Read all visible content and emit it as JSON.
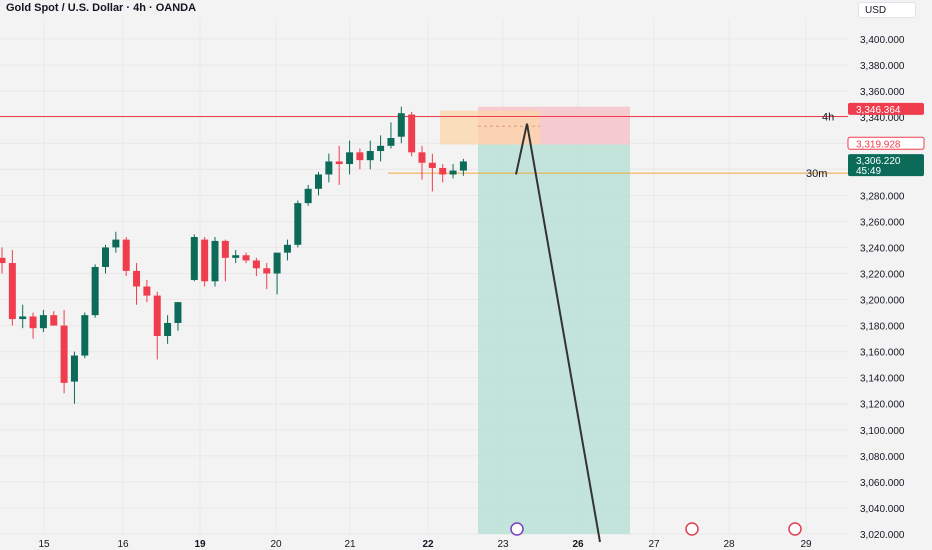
{
  "header": {
    "title": "Gold Spot / U.S. Dollar · 4h · OANDA",
    "currency": "USD"
  },
  "colors": {
    "up": "#0b6b58",
    "down": "#ef3d4e",
    "red_line": "#ef3d4e",
    "orange_line": "#f3a93a",
    "profit_zone": "#b9e0d6",
    "stop_zone": "#f6c6cc",
    "entry_zone": "#fcd6a8",
    "arrow": "#333333"
  },
  "chart_data": {
    "type": "candlestick",
    "y_range": [
      3020,
      3420
    ],
    "y_ticks": [
      "3,400.000",
      "3,380.000",
      "3,360.000",
      "3,340.000",
      "3,320.000",
      "3,300.000",
      "3,280.000",
      "3,260.000",
      "3,240.000",
      "3,220.000",
      "3,200.000",
      "3,180.000",
      "3,160.000",
      "3,140.000",
      "3,120.000",
      "3,100.000",
      "3,080.000",
      "3,060.000",
      "3,040.000",
      "3,020.000"
    ],
    "x_ticks": [
      "15",
      "16",
      "19",
      "20",
      "21",
      "22",
      "23",
      "26",
      "27",
      "28",
      "29"
    ],
    "candles": [
      {
        "o": 3232,
        "h": 3240,
        "l": 3220,
        "c": 3228
      },
      {
        "o": 3228,
        "h": 3238,
        "l": 3180,
        "c": 3185
      },
      {
        "o": 3185,
        "h": 3196,
        "l": 3178,
        "c": 3187
      },
      {
        "o": 3187,
        "h": 3190,
        "l": 3170,
        "c": 3178
      },
      {
        "o": 3178,
        "h": 3192,
        "l": 3175,
        "c": 3188
      },
      {
        "o": 3188,
        "h": 3191,
        "l": 3180,
        "c": 3180
      },
      {
        "o": 3180,
        "h": 3192,
        "l": 3128,
        "c": 3136
      },
      {
        "o": 3137,
        "h": 3160,
        "l": 3120,
        "c": 3157
      },
      {
        "o": 3157,
        "h": 3190,
        "l": 3155,
        "c": 3188
      },
      {
        "o": 3188,
        "h": 3227,
        "l": 3186,
        "c": 3225
      },
      {
        "o": 3225,
        "h": 3242,
        "l": 3220,
        "c": 3240
      },
      {
        "o": 3240,
        "h": 3252,
        "l": 3236,
        "c": 3246
      },
      {
        "o": 3246,
        "h": 3248,
        "l": 3218,
        "c": 3222
      },
      {
        "o": 3222,
        "h": 3228,
        "l": 3196,
        "c": 3210
      },
      {
        "o": 3210,
        "h": 3215,
        "l": 3198,
        "c": 3203
      },
      {
        "o": 3203,
        "h": 3206,
        "l": 3154,
        "c": 3172
      },
      {
        "o": 3172,
        "h": 3188,
        "l": 3166,
        "c": 3182
      },
      {
        "o": 3182,
        "h": 3198,
        "l": 3176,
        "c": 3198
      },
      {
        "o": 3215,
        "h": 3250,
        "l": 3214,
        "c": 3248
      },
      {
        "o": 3246,
        "h": 3248,
        "l": 3210,
        "c": 3214
      },
      {
        "o": 3214,
        "h": 3248,
        "l": 3210,
        "c": 3245
      },
      {
        "o": 3245,
        "h": 3246,
        "l": 3214,
        "c": 3232
      },
      {
        "o": 3232,
        "h": 3238,
        "l": 3228,
        "c": 3234
      },
      {
        "o": 3234,
        "h": 3236,
        "l": 3228,
        "c": 3230
      },
      {
        "o": 3230,
        "h": 3232,
        "l": 3218,
        "c": 3224
      },
      {
        "o": 3224,
        "h": 3228,
        "l": 3208,
        "c": 3220
      },
      {
        "o": 3220,
        "h": 3236,
        "l": 3204,
        "c": 3236
      },
      {
        "o": 3236,
        "h": 3246,
        "l": 3230,
        "c": 3242
      },
      {
        "o": 3242,
        "h": 3276,
        "l": 3240,
        "c": 3274
      },
      {
        "o": 3274,
        "h": 3288,
        "l": 3272,
        "c": 3285
      },
      {
        "o": 3285,
        "h": 3298,
        "l": 3280,
        "c": 3296
      },
      {
        "o": 3296,
        "h": 3312,
        "l": 3290,
        "c": 3306
      },
      {
        "o": 3306,
        "h": 3318,
        "l": 3288,
        "c": 3304
      },
      {
        "o": 3304,
        "h": 3322,
        "l": 3296,
        "c": 3313
      },
      {
        "o": 3313,
        "h": 3316,
        "l": 3300,
        "c": 3307
      },
      {
        "o": 3307,
        "h": 3322,
        "l": 3300,
        "c": 3314
      },
      {
        "o": 3314,
        "h": 3326,
        "l": 3306,
        "c": 3318
      },
      {
        "o": 3318,
        "h": 3336,
        "l": 3316,
        "c": 3324
      },
      {
        "o": 3325,
        "h": 3348,
        "l": 3320,
        "c": 3343
      },
      {
        "o": 3342,
        "h": 3344,
        "l": 3310,
        "c": 3313
      },
      {
        "o": 3313,
        "h": 3318,
        "l": 3292,
        "c": 3305
      },
      {
        "o": 3305,
        "h": 3312,
        "l": 3283,
        "c": 3301
      },
      {
        "o": 3301,
        "h": 3304,
        "l": 3290,
        "c": 3296
      },
      {
        "o": 3296,
        "h": 3304,
        "l": 3293,
        "c": 3299
      },
      {
        "o": 3299,
        "h": 3308,
        "l": 3295,
        "c": 3306
      }
    ],
    "levels": [
      {
        "value": 3340.5,
        "label": "4h",
        "color": "red"
      },
      {
        "value": 3297,
        "label": "30m",
        "color": "orange"
      }
    ],
    "price_tags": [
      {
        "value": 3346.364,
        "text": "3,346.364",
        "style": "red"
      },
      {
        "value": 3319.928,
        "text": "3,319.928",
        "style": "red-outline"
      },
      {
        "value": 3306.22,
        "text": "3,306.220",
        "countdown": "45:49",
        "style": "green"
      }
    ],
    "position": {
      "stop": 3348,
      "entry_top": 3345,
      "entry_bottom": 3319,
      "target": 3020,
      "projection_from": 3296,
      "projection_peak": 3335,
      "projection_end": 3020
    }
  }
}
